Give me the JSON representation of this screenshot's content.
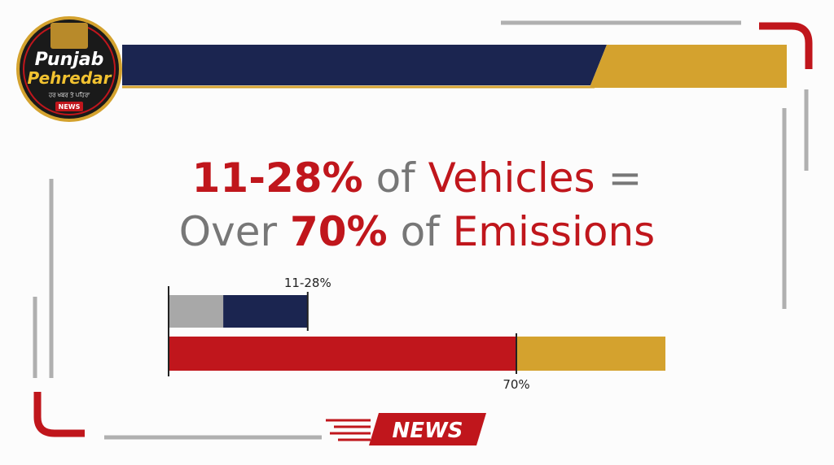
{
  "logo": {
    "line1": "Punjab",
    "line2": "Pehredar",
    "tagline": "ਹਰ ਖਬਰ ਤੇ ਪਹਿਰਾ",
    "badge": "NEWS"
  },
  "headline": {
    "line1": [
      "11-28%",
      "of",
      "Vehicles",
      "="
    ],
    "line2": [
      "Over",
      "70%",
      "of",
      "Emissions"
    ]
  },
  "chart_data": {
    "type": "bar",
    "orientation": "horizontal",
    "xlim": [
      0,
      100
    ],
    "bars": [
      {
        "label": "11-28%",
        "segments": [
          {
            "color": "#a8a8a8",
            "value": 11
          },
          {
            "color": "#1b2550",
            "value": 17
          }
        ]
      },
      {
        "label": "70%",
        "segments": [
          {
            "color": "#c0161c",
            "value": 70
          },
          {
            "color": "#d4a22e",
            "value": 30
          }
        ]
      }
    ]
  },
  "footer": {
    "badge": "NEWS"
  }
}
